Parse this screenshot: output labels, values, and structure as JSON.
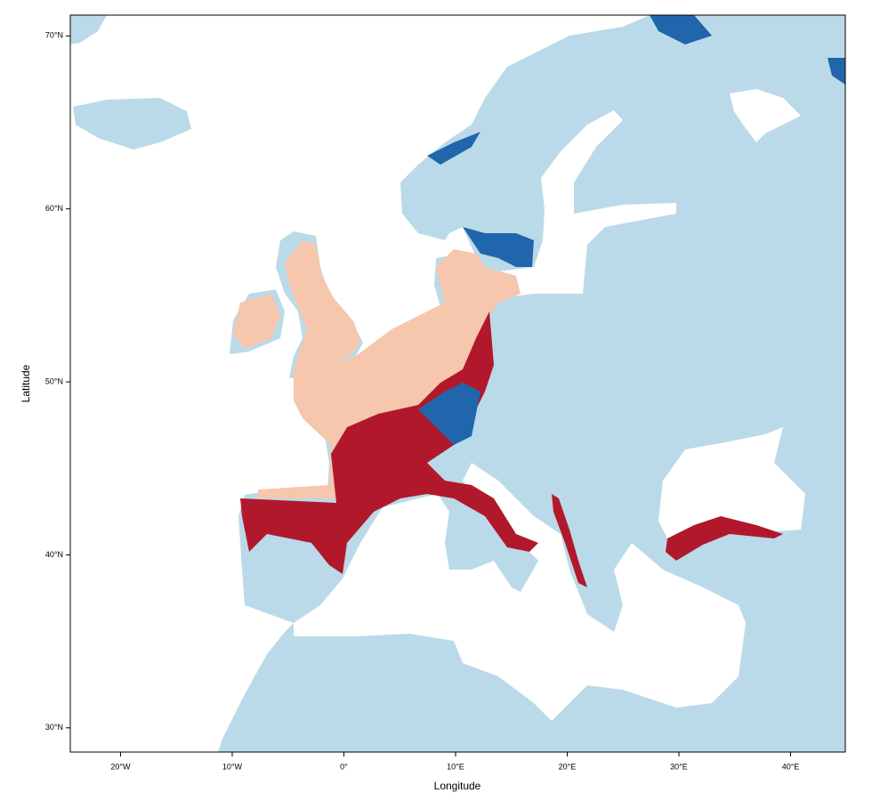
{
  "chart_data": {
    "type": "map",
    "xlabel": "Longitude",
    "ylabel": "Latitude",
    "xlim": [
      -24.5,
      44.9
    ],
    "ylim": [
      28.6,
      71.2
    ],
    "xticks": [
      {
        "value": -20,
        "label": "20°W"
      },
      {
        "value": -10,
        "label": "10°W"
      },
      {
        "value": 0,
        "label": "0°"
      },
      {
        "value": 10,
        "label": "10°E"
      },
      {
        "value": 20,
        "label": "20°E"
      },
      {
        "value": 30,
        "label": "30°E"
      },
      {
        "value": 40,
        "label": "40°E"
      }
    ],
    "yticks": [
      {
        "value": 30,
        "label": "30°N"
      },
      {
        "value": 40,
        "label": "40°N"
      },
      {
        "value": 50,
        "label": "50°N"
      },
      {
        "value": 60,
        "label": "60°N"
      },
      {
        "value": 70,
        "label": "70°N"
      }
    ]
  }
}
